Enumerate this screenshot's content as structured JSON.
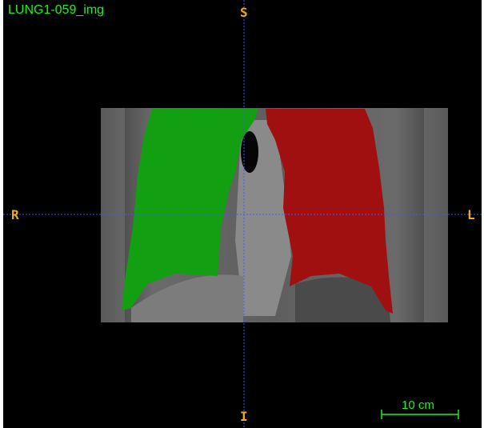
{
  "viewer": {
    "volume_name": "LUNG1-059_img",
    "orientation": {
      "superior": "S",
      "inferior": "I",
      "right": "R",
      "left": "L"
    },
    "scale_label": "10 cm",
    "segments": [
      {
        "name": "right-lung",
        "color": "#12a012"
      },
      {
        "name": "left-lung",
        "color": "#a01010"
      }
    ],
    "colors": {
      "background": "#000000",
      "overlay_text": "#22ee22",
      "orientation_text": "#f0a820",
      "crosshair": "#4455ff"
    }
  }
}
